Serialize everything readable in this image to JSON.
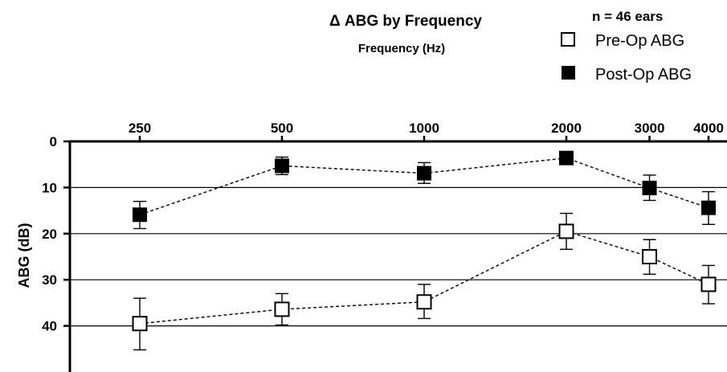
{
  "chart_data": {
    "type": "line",
    "title": "Δ ABG by Frequency",
    "xlabel": "Frequency (Hz)",
    "ylabel": "ABG (dB)",
    "legend_header": "n = 46 ears",
    "legend_position": "top-right",
    "categories": [
      "250",
      "500",
      "1000",
      "2000",
      "3000",
      "4000"
    ],
    "x": [
      250,
      500,
      1000,
      2000,
      3000,
      4000
    ],
    "x_scale": "log",
    "y_ticks": [
      "0",
      "10",
      "20",
      "30",
      "40"
    ],
    "y_tick_values": [
      0,
      10,
      20,
      30,
      40
    ],
    "ylim": [
      0,
      50
    ],
    "y_inverted": true,
    "x_axis_position": "top",
    "grid": "horizontal",
    "series": [
      {
        "name": "Pre-Op ABG",
        "marker": "open-square",
        "values": [
          39.5,
          36.4,
          34.8,
          19.5,
          25.0,
          31.0
        ],
        "error_low": [
          45.2,
          39.8,
          38.4,
          23.4,
          28.8,
          35.2
        ],
        "error_high": [
          34.0,
          33.0,
          31.0,
          15.6,
          21.3,
          26.9
        ]
      },
      {
        "name": "Post-Op ABG",
        "marker": "filled-square",
        "values": [
          15.9,
          5.3,
          6.9,
          3.6,
          10.1,
          14.4
        ],
        "error_low": [
          18.9,
          7.2,
          9.1,
          3.6,
          12.8,
          18.0
        ],
        "error_high": [
          13.0,
          3.4,
          4.6,
          3.6,
          7.3,
          10.9
        ]
      }
    ]
  }
}
